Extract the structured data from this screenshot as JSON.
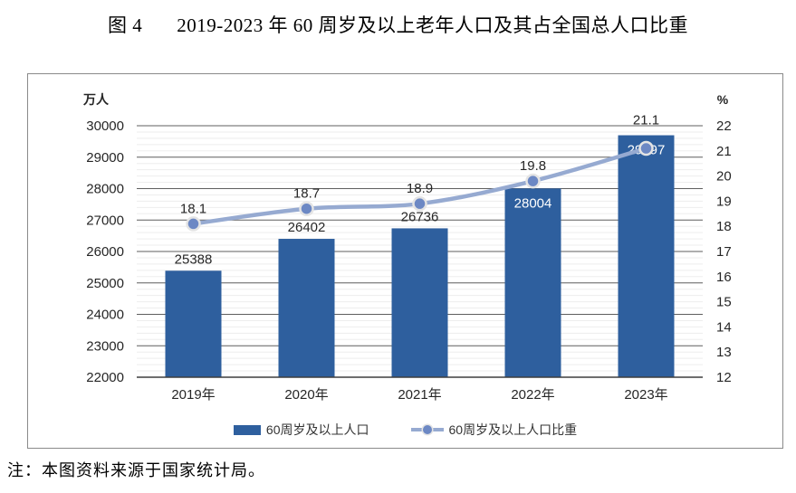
{
  "title": {
    "prefix": "图 4",
    "text": "2019-2023 年 60 周岁及以上老年人口及其占全国总人口比重"
  },
  "note": {
    "text": "注：本图资料来源于国家统计局。"
  },
  "chart_data": {
    "type": "bar",
    "categories": [
      "2019年",
      "2020年",
      "2021年",
      "2022年",
      "2023年"
    ],
    "series": [
      {
        "name": "60周岁及以上人口",
        "type": "bar",
        "axis": "left",
        "values": [
          25388,
          26402,
          26736,
          28004,
          29697
        ]
      },
      {
        "name": "60周岁及以上人口比重",
        "type": "line",
        "axis": "right",
        "values": [
          18.1,
          18.7,
          18.9,
          19.8,
          21.1
        ]
      }
    ],
    "left_axis": {
      "unit": "万人",
      "min": 22000,
      "max": 30000,
      "step": 1000,
      "minor_step": 200
    },
    "right_axis": {
      "unit": "%",
      "min": 12,
      "max": 22,
      "step": 1
    },
    "grid": true,
    "legend_position": "bottom",
    "bar_label_inside": [
      false,
      false,
      false,
      true,
      true
    ],
    "colors": {
      "bar": "#2e5f9e",
      "line": "#96aad1",
      "marker": "#6c88c4",
      "marker_ring": "#e4e4e4",
      "grid_major": "#5f5f5f",
      "grid_minor": "#ededed",
      "axis_line": "#3f3f3f",
      "label_dark": "#262626",
      "label_light": "#ffffff"
    }
  }
}
